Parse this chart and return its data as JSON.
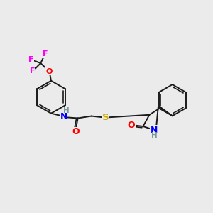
{
  "background_color": "#ebebeb",
  "bond_color": "#1a1a1a",
  "atom_colors": {
    "N": "#0000ff",
    "O": "#ff0000",
    "S": "#ccaa00",
    "F": "#ff00ff",
    "H_label": "#7a9a9a",
    "C": "#1a1a1a"
  },
  "figsize": [
    3.0,
    3.0
  ],
  "dpi": 100
}
